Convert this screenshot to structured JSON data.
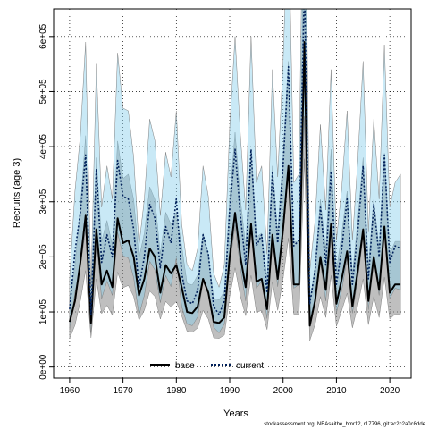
{
  "chart_data": {
    "type": "line",
    "xlabel": "Years",
    "ylabel": "Recruits (age 3)",
    "xlim": [
      1957,
      2024
    ],
    "ylim": [
      -20000,
      650000
    ],
    "x_ticks": [
      1960,
      1970,
      1980,
      1990,
      2000,
      2010,
      2020
    ],
    "y_ticks": [
      0,
      100000,
      200000,
      300000,
      400000,
      500000,
      600000
    ],
    "y_tick_labels": [
      "0e+00",
      "1e+05",
      "2e+05",
      "3e+05",
      "4e+05",
      "5e+05",
      "6e+05"
    ],
    "grid": true,
    "legend_position": "bottom-center",
    "x": [
      1960,
      1961,
      1962,
      1963,
      1964,
      1965,
      1966,
      1967,
      1968,
      1969,
      1970,
      1971,
      1972,
      1973,
      1974,
      1975,
      1976,
      1977,
      1978,
      1979,
      1980,
      1981,
      1982,
      1983,
      1984,
      1985,
      1986,
      1987,
      1988,
      1989,
      1990,
      1991,
      1992,
      1993,
      1994,
      1995,
      1996,
      1997,
      1998,
      1999,
      2000,
      2001,
      2002,
      2003,
      2004,
      2005,
      2006,
      2007,
      2008,
      2009,
      2010,
      2011,
      2012,
      2013,
      2014,
      2015,
      2016,
      2017,
      2018,
      2019,
      2020,
      2021,
      2022
    ],
    "series": [
      {
        "name": "base",
        "color": "#000000",
        "band_color": "#8a8a8a",
        "values": [
          82000,
          120000,
          190000,
          275000,
          80000,
          250000,
          150000,
          175000,
          145000,
          270000,
          225000,
          230000,
          200000,
          130000,
          160000,
          215000,
          200000,
          135000,
          185000,
          170000,
          185000,
          145000,
          100000,
          98000,
          110000,
          160000,
          135000,
          82000,
          80000,
          90000,
          200000,
          280000,
          200000,
          145000,
          260000,
          155000,
          160000,
          105000,
          240000,
          160000,
          250000,
          365000,
          150000,
          150000,
          590000,
          75000,
          120000,
          200000,
          140000,
          260000,
          115000,
          160000,
          210000,
          110000,
          175000,
          250000,
          120000,
          200000,
          140000,
          255000,
          135000,
          150000,
          150000
        ],
        "lower": [
          52000,
          76000,
          120000,
          175000,
          53000,
          160000,
          97000,
          112000,
          94000,
          172000,
          144000,
          148000,
          128000,
          85000,
          103000,
          138000,
          128000,
          87000,
          119000,
          109000,
          119000,
          93000,
          65000,
          63000,
          71000,
          103000,
          87000,
          53000,
          52000,
          58000,
          128000,
          180000,
          128000,
          93000,
          166000,
          99000,
          103000,
          68000,
          154000,
          103000,
          160000,
          234000,
          96000,
          96000,
          378000,
          48000,
          77000,
          128000,
          90000,
          166000,
          74000,
          103000,
          134000,
          71000,
          112000,
          160000,
          77000,
          128000,
          90000,
          163000,
          87000,
          96000,
          96000
        ],
        "upper": [
          125000,
          185000,
          290000,
          420000,
          122000,
          380000,
          228000,
          266000,
          221000,
          410000,
          342000,
          350000,
          304000,
          198000,
          243000,
          327000,
          304000,
          205000,
          281000,
          259000,
          281000,
          220000,
          152000,
          149000,
          167000,
          243000,
          205000,
          125000,
          122000,
          137000,
          304000,
          426000,
          304000,
          220000,
          395000,
          236000,
          243000,
          160000,
          365000,
          243000,
          380000,
          555000,
          228000,
          228000,
          897000,
          114000,
          182000,
          304000,
          213000,
          395000,
          175000,
          243000,
          319000,
          167000,
          266000,
          380000,
          182000,
          304000,
          213000,
          388000,
          205000,
          228000,
          228000
        ]
      },
      {
        "name": "current",
        "color": "#00205b",
        "band_color": "#87ceeb",
        "values": [
          105000,
          210000,
          280000,
          385000,
          95000,
          360000,
          190000,
          240000,
          200000,
          375000,
          310000,
          305000,
          250000,
          145000,
          200000,
          295000,
          270000,
          180000,
          255000,
          225000,
          305000,
          170000,
          120000,
          115000,
          140000,
          240000,
          205000,
          110000,
          95000,
          120000,
          285000,
          395000,
          275000,
          185000,
          395000,
          220000,
          240000,
          135000,
          355000,
          225000,
          365000,
          545000,
          220000,
          230000,
          700000,
          115000,
          175000,
          290000,
          185000,
          355000,
          150000,
          215000,
          305000,
          150000,
          245000,
          365000,
          160000,
          295000,
          200000,
          385000,
          190000,
          220000,
          215000
        ],
        "lower": [
          68000,
          136000,
          182000,
          250000,
          62000,
          234000,
          124000,
          156000,
          130000,
          244000,
          202000,
          198000,
          162000,
          94000,
          130000,
          192000,
          176000,
          117000,
          166000,
          146000,
          198000,
          110000,
          78000,
          75000,
          91000,
          156000,
          133000,
          72000,
          62000,
          78000,
          185000,
          257000,
          179000,
          120000,
          257000,
          143000,
          156000,
          88000,
          231000,
          146000,
          237000,
          354000,
          143000,
          150000,
          455000,
          75000,
          114000,
          189000,
          120000,
          231000,
          98000,
          140000,
          198000,
          98000,
          159000,
          237000,
          104000,
          192000,
          130000,
          250000,
          124000,
          143000,
          140000
        ],
        "upper": [
          160000,
          320000,
          420000,
          590000,
          145000,
          550000,
          290000,
          365000,
          305000,
          570000,
          470000,
          465000,
          380000,
          220000,
          305000,
          450000,
          410000,
          275000,
          390000,
          345000,
          465000,
          260000,
          185000,
          175000,
          215000,
          365000,
          310000,
          170000,
          145000,
          185000,
          435000,
          600000,
          420000,
          285000,
          600000,
          335000,
          365000,
          205000,
          540000,
          345000,
          555000,
          830000,
          335000,
          350000,
          1060000,
          175000,
          265000,
          440000,
          285000,
          540000,
          230000,
          325000,
          465000,
          230000,
          375000,
          555000,
          245000,
          450000,
          305000,
          585000,
          290000,
          335000,
          350000
        ]
      }
    ]
  },
  "footer_text": "stockassessment.org, NEAsaithe_bmr12, r17796, git:ec2c2a0c8dde"
}
